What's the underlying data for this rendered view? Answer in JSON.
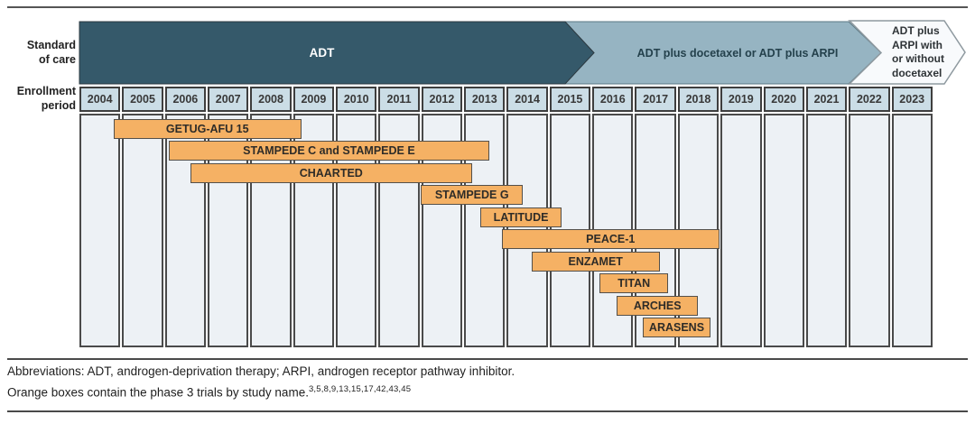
{
  "labels": {
    "standard_of_care_line1": "Standard",
    "standard_of_care_line2": "of care",
    "enrollment_line1": "Enrollment",
    "enrollment_line2": "period"
  },
  "banner": {
    "adt_label": "ADT",
    "middle_label": "ADT plus docetaxel or ADT plus ARPI",
    "right_label_lines": [
      "ADT plus",
      "ARPI with",
      "or without",
      "docetaxel"
    ]
  },
  "years": [
    "2004",
    "2005",
    "2006",
    "2007",
    "2008",
    "2009",
    "2010",
    "2011",
    "2012",
    "2013",
    "2014",
    "2015",
    "2016",
    "2017",
    "2018",
    "2019",
    "2020",
    "2021",
    "2022",
    "2023"
  ],
  "chart_data": {
    "type": "bar",
    "variant": "gantt-timeline",
    "x": {
      "label": "Enrollment period",
      "ticks": [
        "2004",
        "2005",
        "2006",
        "2007",
        "2008",
        "2009",
        "2010",
        "2011",
        "2012",
        "2013",
        "2014",
        "2015",
        "2016",
        "2017",
        "2018",
        "2019",
        "2020",
        "2021",
        "2022",
        "2023"
      ],
      "range": [
        2004,
        2024
      ]
    },
    "grid": "vertical lines at each year boundary",
    "standard_of_care_eras": [
      {
        "label": "ADT",
        "start": 2004.0,
        "end": 2015.4
      },
      {
        "label": "ADT plus docetaxel or ADT plus ARPI",
        "start": 2015.4,
        "end": 2022.0
      },
      {
        "label": "ADT plus ARPI with or without docetaxel",
        "start": 2022.0,
        "end": 2024.0
      }
    ],
    "trials": [
      {
        "name": "GETUG-AFU 15",
        "start": 2004.8,
        "end": 2009.2
      },
      {
        "name": "STAMPEDE C and STAMPEDE E",
        "start": 2006.1,
        "end": 2013.6
      },
      {
        "name": "CHAARTED",
        "start": 2006.6,
        "end": 2013.2
      },
      {
        "name": "STAMPEDE G",
        "start": 2012.0,
        "end": 2014.4
      },
      {
        "name": "LATITUDE",
        "start": 2013.4,
        "end": 2015.3
      },
      {
        "name": "PEACE-1",
        "start": 2013.9,
        "end": 2019.0
      },
      {
        "name": "ENZAMET",
        "start": 2014.6,
        "end": 2017.6
      },
      {
        "name": "TITAN",
        "start": 2016.2,
        "end": 2017.8
      },
      {
        "name": "ARCHES",
        "start": 2016.6,
        "end": 2018.5
      },
      {
        "name": "ARASENS",
        "start": 2017.2,
        "end": 2018.8
      }
    ]
  },
  "footnotes": {
    "line1": "Abbreviations: ADT, androgen-deprivation therapy; ARPI, androgen receptor pathway inhibitor.",
    "line2": "Orange boxes contain the phase 3 trials by study name.",
    "line2_sup": "3,5,8,9,13,15,17,42,43,45"
  },
  "colors": {
    "dark_teal": "#35596A",
    "light_blue": "#96B4C2",
    "pale_fill": "#F8FAFC",
    "pale_border": "#8E999F",
    "orange_fill": "#F5B164",
    "orange_border": "#54504A",
    "year_fill": "#CBDDE6",
    "grid_fill": "#EDF1F5",
    "blue_text": "#24414C",
    "rule": "#4A4A4A"
  }
}
